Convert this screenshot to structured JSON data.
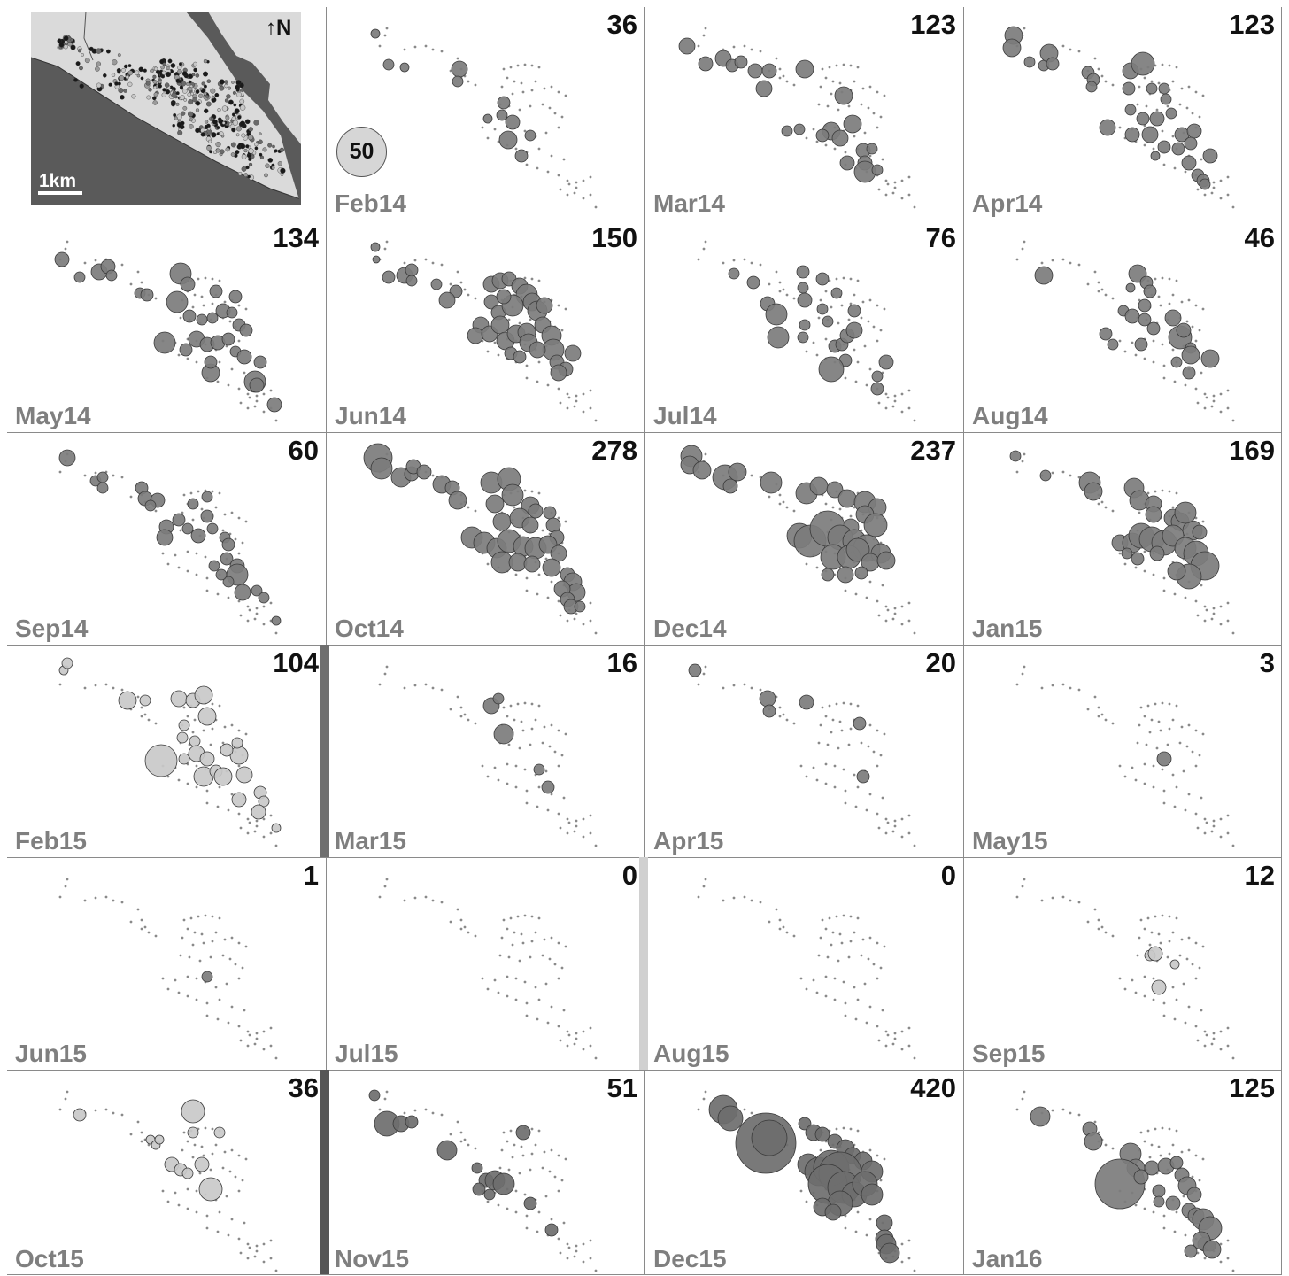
{
  "map_inset": {
    "north_label": "N",
    "scale_label": "1km",
    "colors": {
      "land": "#dadada",
      "sea": "#5a5a5a",
      "river": "#5a5a5a"
    },
    "icon": "north-arrow-icon"
  },
  "legend": {
    "circle_value": "50",
    "circle_color": "#d6d6d6"
  },
  "chart_data": {
    "type": "scatter",
    "description_note": "",
    "panels": [
      {
        "month": "Feb14",
        "count": "36",
        "tone": "mid"
      },
      {
        "month": "Mar14",
        "count": "123",
        "tone": "mid"
      },
      {
        "month": "Apr14",
        "count": "123",
        "tone": "mid"
      },
      {
        "month": "May14",
        "count": "134",
        "tone": "mid"
      },
      {
        "month": "Jun14",
        "count": "150",
        "tone": "mid"
      },
      {
        "month": "Jul14",
        "count": "76",
        "tone": "mid"
      },
      {
        "month": "Aug14",
        "count": "46",
        "tone": "mid"
      },
      {
        "month": "Sep14",
        "count": "60",
        "tone": "mid"
      },
      {
        "month": "Oct14",
        "count": "278",
        "tone": "mid"
      },
      {
        "month": "Dec14",
        "count": "237",
        "tone": "mid"
      },
      {
        "month": "Jan15",
        "count": "169",
        "tone": "mid"
      },
      {
        "month": "Feb15",
        "count": "104",
        "tone": "light"
      },
      {
        "month": "Mar15",
        "count": "16",
        "tone": "mid"
      },
      {
        "month": "Apr15",
        "count": "20",
        "tone": "mid"
      },
      {
        "month": "May15",
        "count": "3",
        "tone": "mid"
      },
      {
        "month": "Jun15",
        "count": "1",
        "tone": "mid"
      },
      {
        "month": "Jul15",
        "count": "0",
        "tone": "mid"
      },
      {
        "month": "Aug15",
        "count": "0",
        "tone": "mid"
      },
      {
        "month": "Sep15",
        "count": "12",
        "tone": "light"
      },
      {
        "month": "Oct15",
        "count": "36",
        "tone": "light"
      },
      {
        "month": "Nov15",
        "count": "51",
        "tone": "dark"
      },
      {
        "month": "Dec15",
        "count": "420",
        "tone": "dark"
      },
      {
        "month": "Jan16",
        "count": "125",
        "tone": "mid"
      }
    ],
    "tone_colors": {
      "light": "#c9c9c9",
      "mid": "#7c7c7c",
      "dark": "#6e6e6e"
    },
    "divider_colors": {
      "feb15": "#6f6f6f",
      "aug15": "#d0d0d0",
      "nov15": "#555555"
    }
  }
}
